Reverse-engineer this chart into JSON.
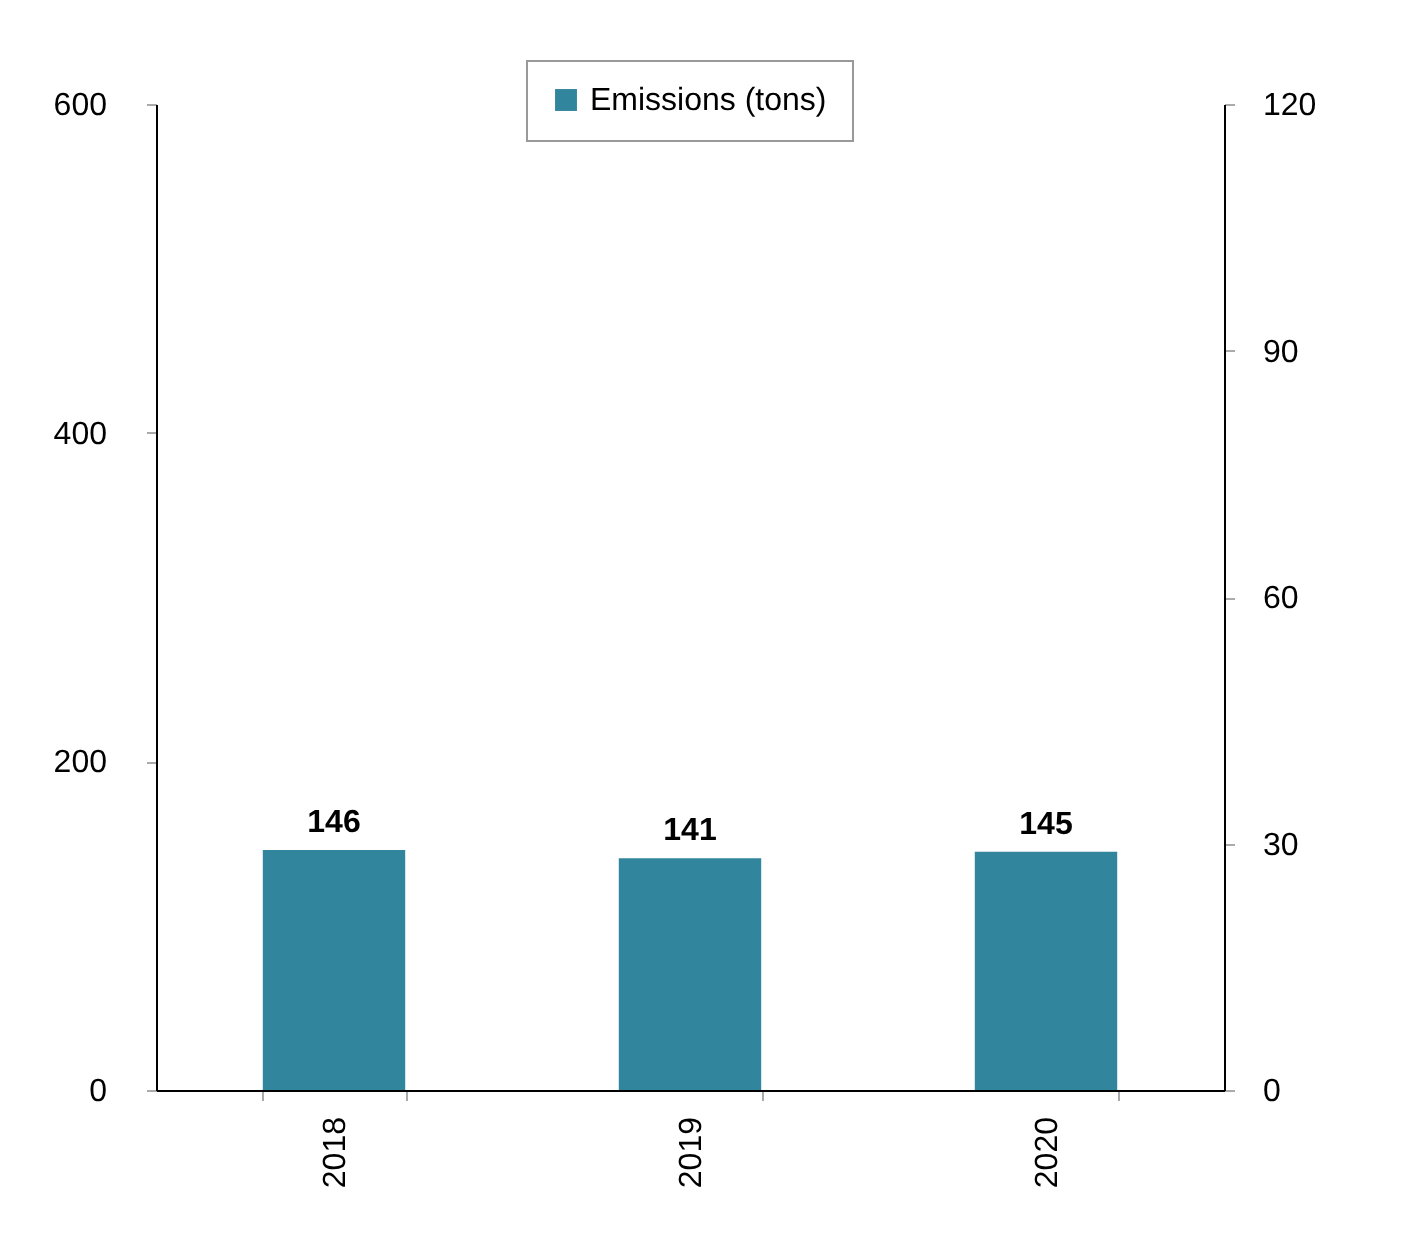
{
  "chart_data": {
    "type": "bar",
    "categories": [
      "2018",
      "2019",
      "2020"
    ],
    "series": [
      {
        "name": "Emissions (tons)",
        "color": "#31859c",
        "values": [
          146,
          141,
          145
        ]
      }
    ],
    "ylim": [
      0,
      600
    ],
    "yticks": [
      0,
      200,
      400,
      600
    ],
    "y2lim": [
      0,
      120
    ],
    "y2ticks": [
      0,
      30,
      60,
      90,
      120
    ],
    "data_labels": true,
    "legend": "top right",
    "grid": false
  }
}
